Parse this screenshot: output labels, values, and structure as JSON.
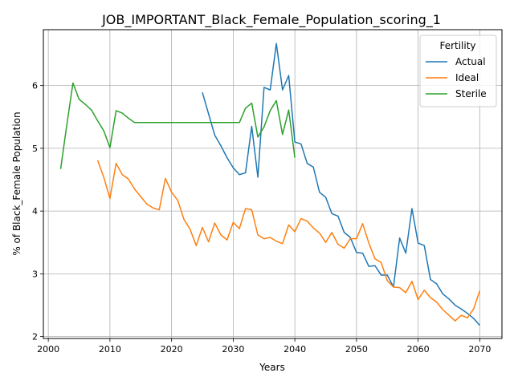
{
  "chart_data": {
    "type": "line",
    "title": "JOB_IMPORTANT_Black_Female_Population_scoring_1",
    "xlabel": "Years",
    "ylabel": "% of Black_Female Population",
    "xlim": [
      1999.2,
      2073.6
    ],
    "ylim": [
      1.97,
      6.89
    ],
    "xticks": [
      2000,
      2010,
      2020,
      2030,
      2040,
      2050,
      2060,
      2070
    ],
    "yticks": [
      2,
      3,
      4,
      5,
      6
    ],
    "grid": true,
    "legend": {
      "title": "Fertility",
      "placement": "top-right"
    },
    "series": [
      {
        "name": "Actual",
        "color": "#1f77b4",
        "x": [
          2025,
          2026,
          2027,
          2028,
          2029,
          2030,
          2031,
          2032,
          2033,
          2034,
          2035,
          2036,
          2037,
          2038,
          2039,
          2040,
          2041,
          2042,
          2043,
          2044,
          2045,
          2046,
          2047,
          2048,
          2049,
          2050,
          2051,
          2052,
          2053,
          2054,
          2055,
          2056,
          2057,
          2058,
          2059,
          2060,
          2061,
          2062,
          2063,
          2064,
          2065,
          2066,
          2067,
          2068,
          2069,
          2070
        ],
        "y": [
          5.89,
          5.55,
          5.21,
          5.04,
          4.85,
          4.69,
          4.58,
          4.61,
          5.35,
          4.54,
          5.97,
          5.93,
          6.67,
          5.93,
          6.16,
          5.1,
          5.07,
          4.76,
          4.7,
          4.3,
          4.22,
          3.96,
          3.92,
          3.66,
          3.58,
          3.34,
          3.33,
          3.12,
          3.13,
          2.98,
          2.98,
          2.79,
          3.57,
          3.33,
          4.04,
          3.49,
          3.45,
          2.91,
          2.84,
          2.68,
          2.6,
          2.5,
          2.44,
          2.37,
          2.29,
          2.18
        ]
      },
      {
        "name": "Ideal",
        "color": "#ff7f0e",
        "x": [
          2008,
          2009,
          2010,
          2011,
          2012,
          2013,
          2014,
          2015,
          2016,
          2017,
          2018,
          2019,
          2020,
          2021,
          2022,
          2023,
          2024,
          2025,
          2026,
          2027,
          2028,
          2029,
          2030,
          2031,
          2032,
          2033,
          2034,
          2035,
          2036,
          2037,
          2038,
          2039,
          2040,
          2041,
          2042,
          2043,
          2044,
          2045,
          2046,
          2047,
          2048,
          2049,
          2050,
          2051,
          2052,
          2053,
          2054,
          2055,
          2056,
          2057,
          2058,
          2059,
          2060,
          2061,
          2062,
          2063,
          2064,
          2065,
          2066,
          2067,
          2068,
          2069,
          2070
        ],
        "y": [
          4.81,
          4.54,
          4.2,
          4.76,
          4.58,
          4.51,
          4.35,
          4.23,
          4.11,
          4.05,
          4.02,
          4.52,
          4.3,
          4.17,
          3.87,
          3.71,
          3.45,
          3.74,
          3.51,
          3.81,
          3.62,
          3.54,
          3.82,
          3.72,
          4.04,
          4.02,
          3.62,
          3.56,
          3.58,
          3.52,
          3.48,
          3.78,
          3.67,
          3.88,
          3.84,
          3.73,
          3.65,
          3.5,
          3.66,
          3.47,
          3.41,
          3.56,
          3.56,
          3.8,
          3.49,
          3.24,
          3.18,
          2.89,
          2.79,
          2.78,
          2.7,
          2.88,
          2.59,
          2.74,
          2.62,
          2.55,
          2.43,
          2.34,
          2.25,
          2.34,
          2.3,
          2.44,
          2.73
        ]
      },
      {
        "name": "Sterile",
        "color": "#2ca02c",
        "x": [
          2002,
          2003,
          2004,
          2005,
          2006,
          2007,
          2008,
          2009,
          2010,
          2011,
          2012,
          2013,
          2014,
          2015,
          2016,
          2017,
          2018,
          2019,
          2020,
          2021,
          2022,
          2023,
          2024,
          2025,
          2026,
          2027,
          2028,
          2029,
          2030,
          2031,
          2032,
          2033,
          2034,
          2035,
          2036,
          2037,
          2038,
          2039,
          2040
        ],
        "y": [
          4.67,
          5.37,
          6.04,
          5.78,
          5.7,
          5.61,
          5.44,
          5.28,
          5.01,
          5.6,
          5.56,
          5.48,
          5.41,
          5.41,
          5.41,
          5.41,
          5.41,
          5.41,
          5.41,
          5.41,
          5.41,
          5.41,
          5.41,
          5.41,
          5.41,
          5.41,
          5.41,
          5.41,
          5.41,
          5.41,
          5.64,
          5.72,
          5.18,
          5.34,
          5.6,
          5.76,
          5.22,
          5.61,
          4.85
        ]
      }
    ]
  }
}
